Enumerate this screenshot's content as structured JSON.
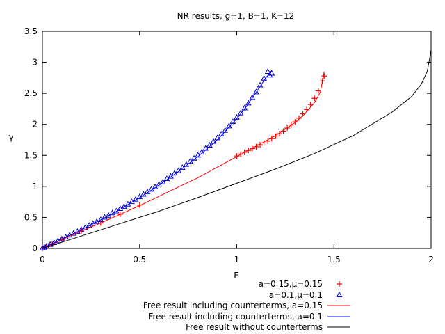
{
  "chart_data": {
    "type": "scatter",
    "title": "NR results, g=1, B=1, K=12",
    "xlabel": "E",
    "ylabel": "γ",
    "xlim": [
      0,
      2
    ],
    "ylim": [
      0,
      3.5
    ],
    "x_ticks": [
      0,
      0.5,
      1,
      1.5,
      2
    ],
    "y_ticks": [
      0,
      0.5,
      1,
      1.5,
      2,
      2.5,
      3,
      3.5
    ],
    "x_tick_labels": [
      "0",
      "0.5",
      "1",
      "1.5",
      "2"
    ],
    "y_tick_labels": [
      "0",
      "0.5",
      "1",
      "1.5",
      "2",
      "2.5",
      "3",
      "3.5"
    ],
    "grid": false,
    "legend_position": "below",
    "series": [
      {
        "name": "a=0.15,μ=0.15",
        "kind": "points",
        "marker": "plus",
        "color": "#ff0000",
        "points": [
          [
            0,
            0
          ],
          [
            0.01,
            0.014
          ],
          [
            0.02,
            0.028
          ],
          [
            0.03,
            0.042
          ],
          [
            0.05,
            0.07
          ],
          [
            0.1,
            0.14
          ],
          [
            0.2,
            0.28
          ],
          [
            0.3,
            0.41
          ],
          [
            0.4,
            0.55
          ],
          [
            0.5,
            0.7
          ],
          [
            1.0,
            1.49
          ],
          [
            1.02,
            1.52
          ],
          [
            1.04,
            1.55
          ],
          [
            1.06,
            1.58
          ],
          [
            1.08,
            1.61
          ],
          [
            1.1,
            1.64
          ],
          [
            1.12,
            1.67
          ],
          [
            1.14,
            1.7
          ],
          [
            1.16,
            1.73
          ],
          [
            1.18,
            1.77
          ],
          [
            1.2,
            1.81
          ],
          [
            1.22,
            1.85
          ],
          [
            1.24,
            1.89
          ],
          [
            1.26,
            1.94
          ],
          [
            1.28,
            1.99
          ],
          [
            1.3,
            2.04
          ],
          [
            1.32,
            2.1
          ],
          [
            1.34,
            2.17
          ],
          [
            1.36,
            2.24
          ],
          [
            1.38,
            2.32
          ],
          [
            1.4,
            2.42
          ],
          [
            1.42,
            2.54
          ],
          [
            1.44,
            2.7
          ],
          [
            1.45,
            2.78
          ]
        ]
      },
      {
        "name": "a=0.1,μ=0.1",
        "kind": "points",
        "marker": "triangle",
        "color": "#0000cc",
        "points": [
          [
            0,
            0
          ],
          [
            0.01,
            0.015
          ],
          [
            0.02,
            0.03
          ],
          [
            0.04,
            0.06
          ],
          [
            0.06,
            0.09
          ],
          [
            0.08,
            0.12
          ],
          [
            0.1,
            0.15
          ],
          [
            0.12,
            0.18
          ],
          [
            0.14,
            0.21
          ],
          [
            0.16,
            0.24
          ],
          [
            0.18,
            0.27
          ],
          [
            0.2,
            0.3
          ],
          [
            0.22,
            0.33
          ],
          [
            0.24,
            0.37
          ],
          [
            0.26,
            0.4
          ],
          [
            0.28,
            0.43
          ],
          [
            0.3,
            0.46
          ],
          [
            0.32,
            0.5
          ],
          [
            0.34,
            0.53
          ],
          [
            0.36,
            0.57
          ],
          [
            0.38,
            0.6
          ],
          [
            0.4,
            0.64
          ],
          [
            0.42,
            0.67
          ],
          [
            0.44,
            0.71
          ],
          [
            0.46,
            0.75
          ],
          [
            0.48,
            0.79
          ],
          [
            0.5,
            0.83
          ],
          [
            0.52,
            0.87
          ],
          [
            0.54,
            0.91
          ],
          [
            0.56,
            0.95
          ],
          [
            0.58,
            0.99
          ],
          [
            0.6,
            1.03
          ],
          [
            0.62,
            1.07
          ],
          [
            0.64,
            1.12
          ],
          [
            0.66,
            1.16
          ],
          [
            0.68,
            1.21
          ],
          [
            0.7,
            1.25
          ],
          [
            0.72,
            1.3
          ],
          [
            0.74,
            1.35
          ],
          [
            0.76,
            1.4
          ],
          [
            0.78,
            1.45
          ],
          [
            0.8,
            1.5
          ],
          [
            0.82,
            1.55
          ],
          [
            0.84,
            1.61
          ],
          [
            0.86,
            1.66
          ],
          [
            0.88,
            1.72
          ],
          [
            0.9,
            1.78
          ],
          [
            0.92,
            1.84
          ],
          [
            0.94,
            1.9
          ],
          [
            0.96,
            1.97
          ],
          [
            0.98,
            2.04
          ],
          [
            1.0,
            2.11
          ],
          [
            1.02,
            2.18
          ],
          [
            1.04,
            2.26
          ],
          [
            1.06,
            2.34
          ],
          [
            1.08,
            2.43
          ],
          [
            1.1,
            2.52
          ],
          [
            1.12,
            2.63
          ],
          [
            1.14,
            2.74
          ],
          [
            1.16,
            2.85
          ],
          [
            1.17,
            2.79
          ],
          [
            1.18,
            2.82
          ]
        ]
      },
      {
        "name": "Free result including counterterms, a=0.15",
        "kind": "line",
        "color": "#ff0000",
        "points": [
          [
            0,
            0
          ],
          [
            0.1,
            0.14
          ],
          [
            0.2,
            0.28
          ],
          [
            0.3,
            0.41
          ],
          [
            0.4,
            0.55
          ],
          [
            0.5,
            0.69
          ],
          [
            0.6,
            0.84
          ],
          [
            0.7,
            0.99
          ],
          [
            0.8,
            1.14
          ],
          [
            0.9,
            1.31
          ],
          [
            1.0,
            1.48
          ],
          [
            1.1,
            1.65
          ],
          [
            1.2,
            1.82
          ],
          [
            1.3,
            2.03
          ],
          [
            1.35,
            2.17
          ],
          [
            1.4,
            2.35
          ],
          [
            1.43,
            2.52
          ],
          [
            1.45,
            2.85
          ]
        ]
      },
      {
        "name": "Free result including counterterms, a=0.1",
        "kind": "line",
        "color": "#0000ff",
        "points": [
          [
            0,
            0
          ],
          [
            0.1,
            0.15
          ],
          [
            0.2,
            0.3
          ],
          [
            0.3,
            0.46
          ],
          [
            0.4,
            0.63
          ],
          [
            0.5,
            0.82
          ],
          [
            0.6,
            1.02
          ],
          [
            0.7,
            1.24
          ],
          [
            0.8,
            1.48
          ],
          [
            0.9,
            1.75
          ],
          [
            1.0,
            2.09
          ],
          [
            1.05,
            2.29
          ],
          [
            1.1,
            2.52
          ],
          [
            1.15,
            2.75
          ],
          [
            1.18,
            2.87
          ]
        ]
      },
      {
        "name": "Free result without counterterms",
        "kind": "line",
        "color": "#000000",
        "points": [
          [
            0,
            0
          ],
          [
            0.2,
            0.2
          ],
          [
            0.4,
            0.4
          ],
          [
            0.6,
            0.6
          ],
          [
            0.8,
            0.82
          ],
          [
            1.0,
            1.05
          ],
          [
            1.2,
            1.28
          ],
          [
            1.4,
            1.53
          ],
          [
            1.6,
            1.82
          ],
          [
            1.8,
            2.2
          ],
          [
            1.9,
            2.45
          ],
          [
            1.95,
            2.65
          ],
          [
            1.98,
            2.85
          ],
          [
            1.995,
            3.1
          ],
          [
            2.0,
            3.2
          ]
        ]
      }
    ]
  }
}
